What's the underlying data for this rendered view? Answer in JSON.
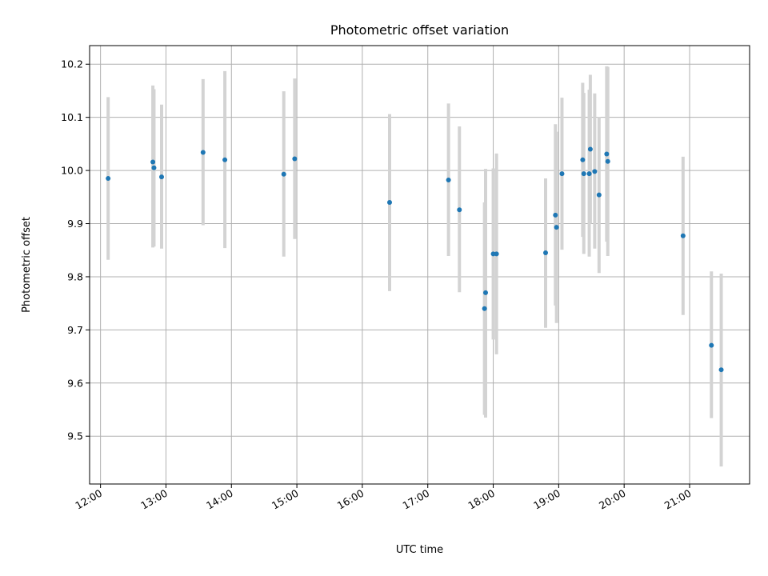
{
  "chart_data": {
    "type": "scatter",
    "title": "Photometric offset variation",
    "xlabel": "UTC time",
    "ylabel": "Photometric offset",
    "grid": true,
    "xlim": [
      "11:50",
      "21:55"
    ],
    "ylim": [
      9.41,
      10.235
    ],
    "x_ticks": [
      "12:00",
      "13:00",
      "14:00",
      "15:00",
      "16:00",
      "17:00",
      "18:00",
      "19:00",
      "20:00",
      "21:00"
    ],
    "y_ticks": [
      "9.5",
      "9.6",
      "9.7",
      "9.8",
      "9.9",
      "10.0",
      "10.1",
      "10.2"
    ],
    "colors": {
      "points": "#1f77b4",
      "errorbars": "#d3d3d3"
    },
    "points": [
      {
        "x": "12:07",
        "y": 9.985,
        "lo": 9.832,
        "hi": 10.138
      },
      {
        "x": "12:48",
        "y": 10.016,
        "lo": 9.855,
        "hi": 10.16
      },
      {
        "x": "12:49",
        "y": 10.005,
        "lo": 9.857,
        "hi": 10.153
      },
      {
        "x": "12:56",
        "y": 9.988,
        "lo": 9.853,
        "hi": 10.124
      },
      {
        "x": "13:34",
        "y": 10.034,
        "lo": 9.897,
        "hi": 10.172
      },
      {
        "x": "13:54",
        "y": 10.02,
        "lo": 9.854,
        "hi": 10.187
      },
      {
        "x": "14:48",
        "y": 9.993,
        "lo": 9.838,
        "hi": 10.149
      },
      {
        "x": "14:58",
        "y": 10.022,
        "lo": 9.871,
        "hi": 10.173
      },
      {
        "x": "16:25",
        "y": 9.94,
        "lo": 9.773,
        "hi": 10.106
      },
      {
        "x": "17:19",
        "y": 9.982,
        "lo": 9.839,
        "hi": 10.126
      },
      {
        "x": "17:29",
        "y": 9.926,
        "lo": 9.771,
        "hi": 10.083
      },
      {
        "x": "17:52",
        "y": 9.74,
        "lo": 9.54,
        "hi": 9.94
      },
      {
        "x": "17:53",
        "y": 9.77,
        "lo": 9.535,
        "hi": 10.003
      },
      {
        "x": "18:00",
        "y": 9.843,
        "lo": 9.682,
        "hi": 10.004
      },
      {
        "x": "18:03",
        "y": 9.843,
        "lo": 9.654,
        "hi": 10.032
      },
      {
        "x": "18:48",
        "y": 9.845,
        "lo": 9.704,
        "hi": 9.985
      },
      {
        "x": "18:57",
        "y": 9.916,
        "lo": 9.746,
        "hi": 10.087
      },
      {
        "x": "18:58",
        "y": 9.893,
        "lo": 9.713,
        "hi": 10.073
      },
      {
        "x": "19:03",
        "y": 9.994,
        "lo": 9.851,
        "hi": 10.137
      },
      {
        "x": "19:22",
        "y": 10.02,
        "lo": 9.875,
        "hi": 10.165
      },
      {
        "x": "19:23",
        "y": 9.994,
        "lo": 9.843,
        "hi": 10.146
      },
      {
        "x": "19:28",
        "y": 9.994,
        "lo": 9.838,
        "hi": 10.152
      },
      {
        "x": "19:29",
        "y": 10.04,
        "lo": 9.9,
        "hi": 10.18
      },
      {
        "x": "19:33",
        "y": 9.998,
        "lo": 9.853,
        "hi": 10.145
      },
      {
        "x": "19:37",
        "y": 9.954,
        "lo": 9.807,
        "hi": 10.101
      },
      {
        "x": "19:44",
        "y": 10.031,
        "lo": 9.866,
        "hi": 10.196
      },
      {
        "x": "19:45",
        "y": 10.017,
        "lo": 9.839,
        "hi": 10.195
      },
      {
        "x": "20:54",
        "y": 9.877,
        "lo": 9.728,
        "hi": 10.026
      },
      {
        "x": "21:20",
        "y": 9.671,
        "lo": 9.534,
        "hi": 9.81
      },
      {
        "x": "21:29",
        "y": 9.625,
        "lo": 9.443,
        "hi": 9.806
      }
    ]
  }
}
